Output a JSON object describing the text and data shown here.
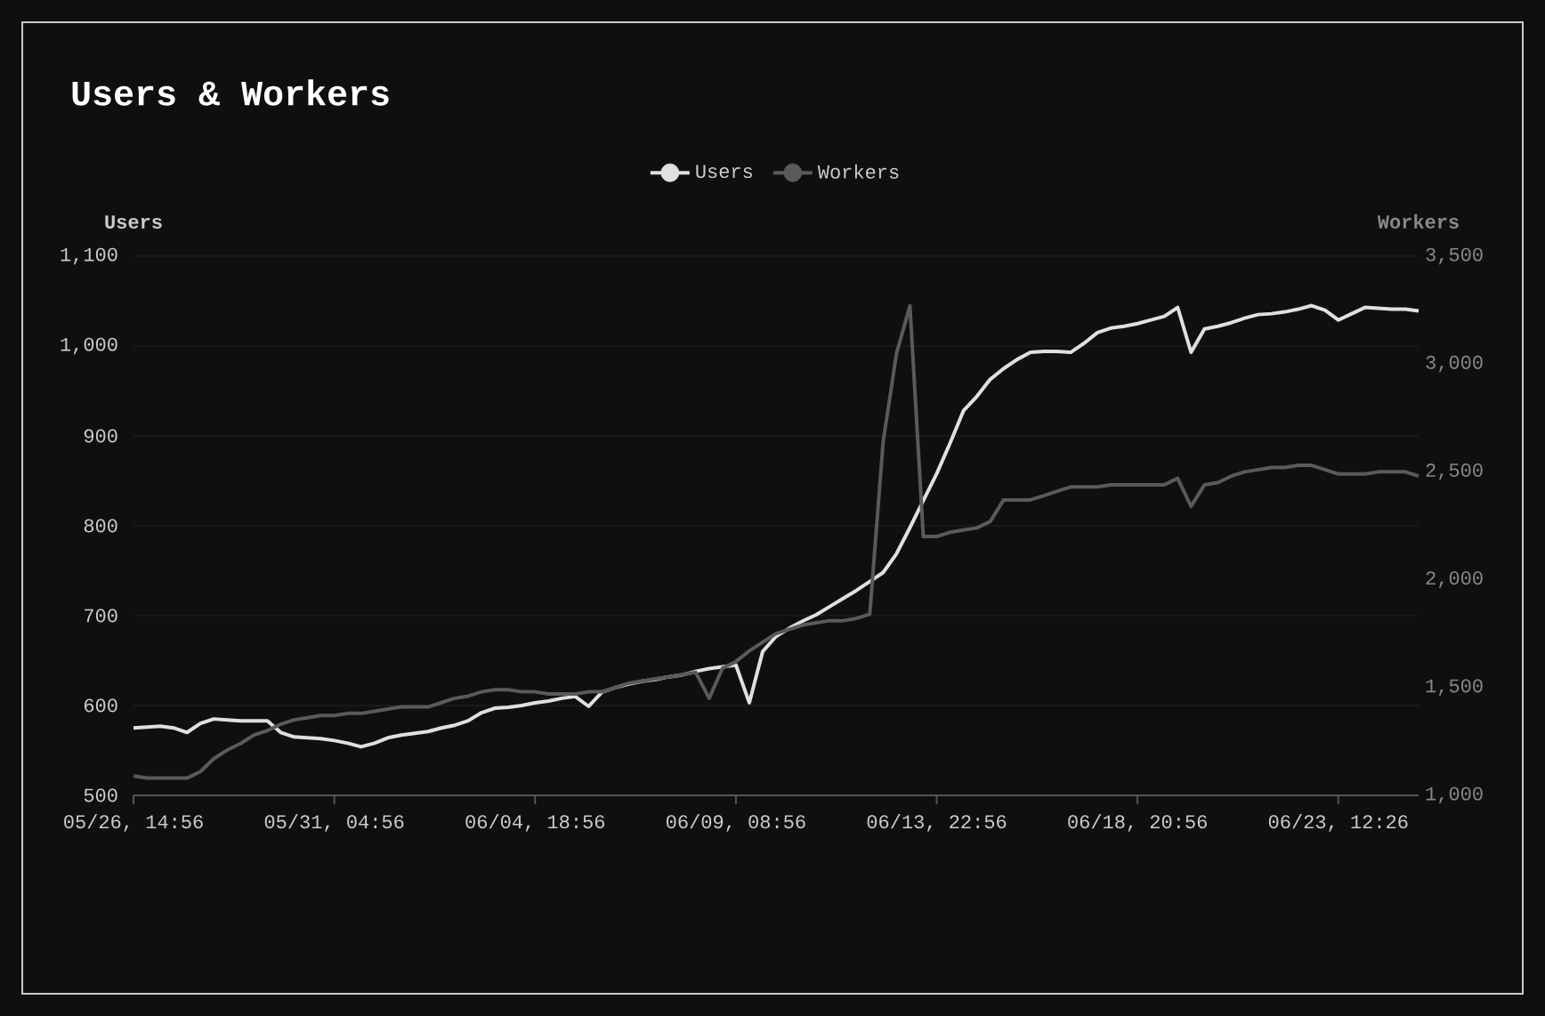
{
  "chart_data": {
    "type": "line",
    "title": "Users & Workers",
    "ylabel": "Users",
    "y2label": "Workers",
    "grid": "y",
    "legend": "top",
    "categories": [
      "05/26, 14:56",
      null,
      null,
      null,
      null,
      null,
      null,
      null,
      null,
      null,
      null,
      null,
      null,
      null,
      null,
      "05/31, 04:56",
      null,
      null,
      null,
      null,
      null,
      null,
      null,
      null,
      null,
      null,
      null,
      null,
      null,
      null,
      "06/04, 18:56",
      null,
      null,
      null,
      null,
      null,
      null,
      null,
      null,
      null,
      null,
      null,
      null,
      null,
      null,
      "06/09, 08:56",
      null,
      null,
      null,
      null,
      null,
      null,
      null,
      null,
      null,
      null,
      null,
      null,
      null,
      null,
      "06/13, 22:56",
      null,
      null,
      null,
      null,
      null,
      null,
      null,
      null,
      null,
      null,
      null,
      null,
      null,
      null,
      "06/18, 20:56",
      null,
      null,
      null,
      null,
      null,
      null,
      null,
      null,
      null,
      null,
      null,
      null,
      null,
      null,
      "06/23, 12:26",
      null,
      null,
      null,
      null,
      null,
      null
    ],
    "ylim": [
      500,
      1100
    ],
    "yticks": [
      500,
      600,
      700,
      800,
      900,
      {
        "value": 1000,
        "label": "1,000"
      },
      {
        "value": 1100,
        "label": "1,100"
      }
    ],
    "y2lim": [
      1000,
      3500
    ],
    "y2ticks": [
      {
        "value": 1000,
        "label": "1,000"
      },
      {
        "value": 1500,
        "label": "1,500"
      },
      {
        "value": 2000,
        "label": "2,000"
      },
      {
        "value": 2500,
        "label": "2,500"
      },
      {
        "value": 3000,
        "label": "3,000"
      },
      {
        "value": 3500,
        "label": "3,500"
      }
    ],
    "series": [
      {
        "name": "Users",
        "color": "#e0e0e0",
        "values": [
          575,
          576,
          577,
          575,
          570,
          580,
          585,
          584,
          583,
          583,
          583,
          570,
          565,
          564,
          563,
          561,
          558,
          554,
          558,
          564,
          567,
          569,
          571,
          575,
          578,
          583,
          592,
          597,
          598,
          600,
          603,
          605,
          608,
          610,
          599,
          615,
          620,
          624,
          627,
          629,
          632,
          634,
          638,
          641,
          643,
          645,
          603,
          660,
          677,
          686,
          694,
          701,
          710,
          719,
          728,
          738,
          748,
          769,
          798,
          828,
          858,
          892,
          928,
          944,
          963,
          975,
          985,
          993,
          994,
          994,
          993,
          1003,
          1015,
          1020,
          1022,
          1025,
          1029,
          1033,
          1043,
          993,
          1019,
          1022,
          1026,
          1031,
          1035,
          1036,
          1038,
          1041,
          1045,
          1040,
          1029,
          1036,
          1043,
          1042,
          1041,
          1041,
          1039
        ]
      },
      {
        "name": "Workers",
        "color": "#5a5a5a",
        "axis": "y2",
        "values": [
          1090,
          1080,
          1080,
          1080,
          1080,
          1110,
          1170,
          1210,
          1240,
          1280,
          1300,
          1330,
          1350,
          1360,
          1370,
          1370,
          1380,
          1380,
          1390,
          1400,
          1410,
          1410,
          1410,
          1430,
          1450,
          1460,
          1480,
          1490,
          1490,
          1480,
          1480,
          1470,
          1470,
          1470,
          1480,
          1480,
          1500,
          1520,
          1530,
          1540,
          1550,
          1560,
          1570,
          1450,
          1590,
          1620,
          1670,
          1710,
          1750,
          1770,
          1790,
          1800,
          1810,
          1810,
          1820,
          1840,
          2640,
          3050,
          3270,
          2200,
          2200,
          2220,
          2230,
          2240,
          2270,
          2370,
          2370,
          2370,
          2390,
          2410,
          2430,
          2430,
          2430,
          2440,
          2440,
          2440,
          2440,
          2440,
          2470,
          2340,
          2440,
          2450,
          2480,
          2500,
          2510,
          2520,
          2520,
          2530,
          2530,
          2510,
          2490,
          2490,
          2490,
          2500,
          2500,
          2500,
          2480
        ]
      }
    ]
  }
}
